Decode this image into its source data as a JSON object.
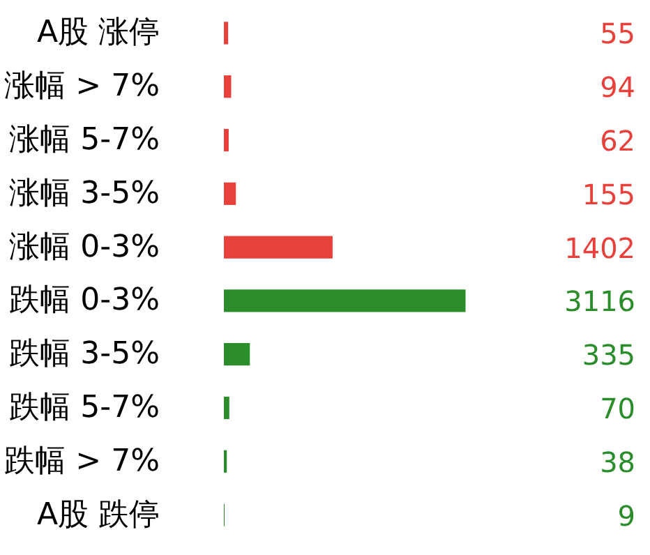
{
  "chart_data": {
    "type": "bar",
    "orientation": "horizontal",
    "categories": [
      "A股 涨停",
      "涨幅 > 7%",
      "涨幅 5-7%",
      "涨幅 3-5%",
      "涨幅 0-3%",
      "跌幅 0-3%",
      "跌幅 3-5%",
      "跌幅 5-7%",
      "跌幅 > 7%",
      "A股 跌停"
    ],
    "values": [
      55,
      94,
      62,
      155,
      1402,
      3116,
      335,
      70,
      38,
      9
    ],
    "colors": [
      "#e8403b",
      "#e8403b",
      "#e8403b",
      "#e8403b",
      "#e8403b",
      "#2a8c2a",
      "#2a8c2a",
      "#2a8c2a",
      "#2a8c2a",
      "#2a8c2a"
    ],
    "data_labels": true,
    "grid": false
  }
}
